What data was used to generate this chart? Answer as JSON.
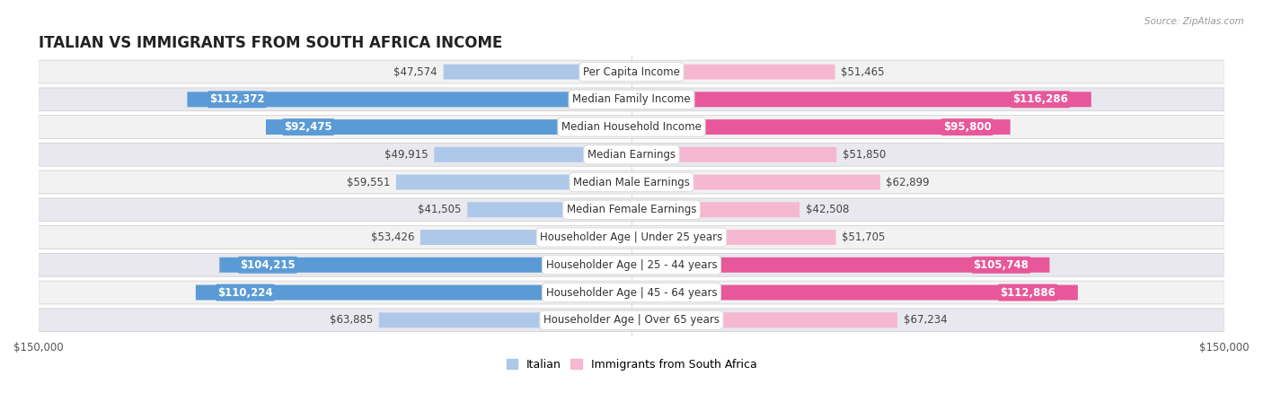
{
  "title": "Italian vs Immigrants from South Africa Income",
  "source": "Source: ZipAtlas.com",
  "categories": [
    "Per Capita Income",
    "Median Family Income",
    "Median Household Income",
    "Median Earnings",
    "Median Male Earnings",
    "Median Female Earnings",
    "Householder Age | Under 25 years",
    "Householder Age | 25 - 44 years",
    "Householder Age | 45 - 64 years",
    "Householder Age | Over 65 years"
  ],
  "italian_values": [
    47574,
    112372,
    92475,
    49915,
    59551,
    41505,
    53426,
    104215,
    110224,
    63885
  ],
  "immigrant_values": [
    51465,
    116286,
    95800,
    51850,
    62899,
    42508,
    51705,
    105748,
    112886,
    67234
  ],
  "italian_labels": [
    "$47,574",
    "$112,372",
    "$92,475",
    "$49,915",
    "$59,551",
    "$41,505",
    "$53,426",
    "$104,215",
    "$110,224",
    "$63,885"
  ],
  "immigrant_labels": [
    "$51,465",
    "$116,286",
    "$95,800",
    "$51,850",
    "$62,899",
    "$42,508",
    "$51,705",
    "$105,748",
    "$112,886",
    "$67,234"
  ],
  "max_value": 150000,
  "italian_color_light": "#adc8e8",
  "italian_color_dark": "#5b9bd5",
  "immigrant_color_light": "#f5b8d0",
  "immigrant_color_dark": "#e8579a",
  "row_colors": [
    "#f2f2f2",
    "#e8e8ee",
    "#f2f2f2",
    "#e8e8ee",
    "#f2f2f2",
    "#e8e8ee",
    "#f2f2f2",
    "#e8e8ee",
    "#f2f2f2",
    "#e8e8ee"
  ],
  "bg_color": "#ffffff",
  "label_fontsize": 8.5,
  "title_fontsize": 12,
  "axis_label_fontsize": 8.5,
  "legend_fontsize": 9,
  "inside_threshold": 85000
}
